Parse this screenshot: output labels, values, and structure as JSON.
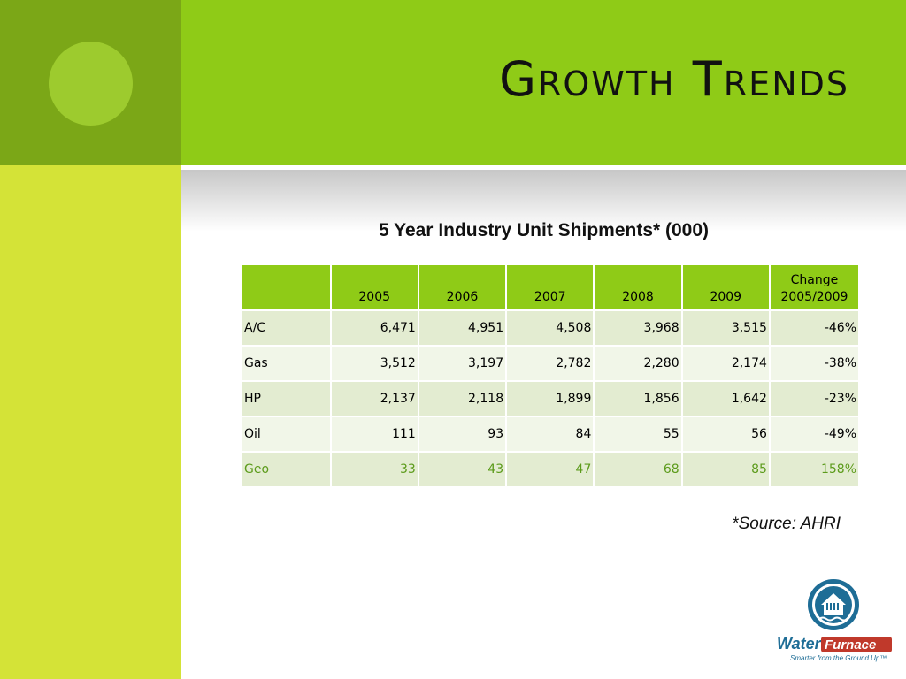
{
  "slide": {
    "title": "Growth Trends",
    "subtitle": "5 Year Industry Unit Shipments* (000)",
    "source": "*Source: AHRI"
  },
  "table": {
    "headers": [
      "",
      "2005",
      "2006",
      "2007",
      "2008",
      "2009",
      "Change 2005/2009"
    ],
    "rows": [
      {
        "label": "A/C",
        "values": [
          "6,471",
          "4,951",
          "4,508",
          "3,968",
          "3,515",
          "-46%"
        ]
      },
      {
        "label": "Gas",
        "values": [
          "3,512",
          "3,197",
          "2,782",
          "2,280",
          "2,174",
          "-38%"
        ]
      },
      {
        "label": "HP",
        "values": [
          "2,137",
          "2,118",
          "1,899",
          "1,856",
          "1,642",
          "-23%"
        ]
      },
      {
        "label": "Oil",
        "values": [
          "111",
          "93",
          "84",
          "55",
          "56",
          "-49%"
        ]
      },
      {
        "label": "Geo",
        "values": [
          "33",
          "43",
          "47",
          "68",
          "85",
          "158%"
        ]
      }
    ]
  },
  "logo": {
    "name_part1": "Water",
    "name_part2": "Furnace",
    "tagline": "Smarter from the Ground Up™"
  },
  "colors": {
    "title_band": "#8fcb17",
    "left_top": "#7ba717",
    "left_bottom": "#d4e337",
    "geo_text": "#5c9b1b",
    "logo_blue": "#1e6d96",
    "logo_red": "#c0392b"
  }
}
